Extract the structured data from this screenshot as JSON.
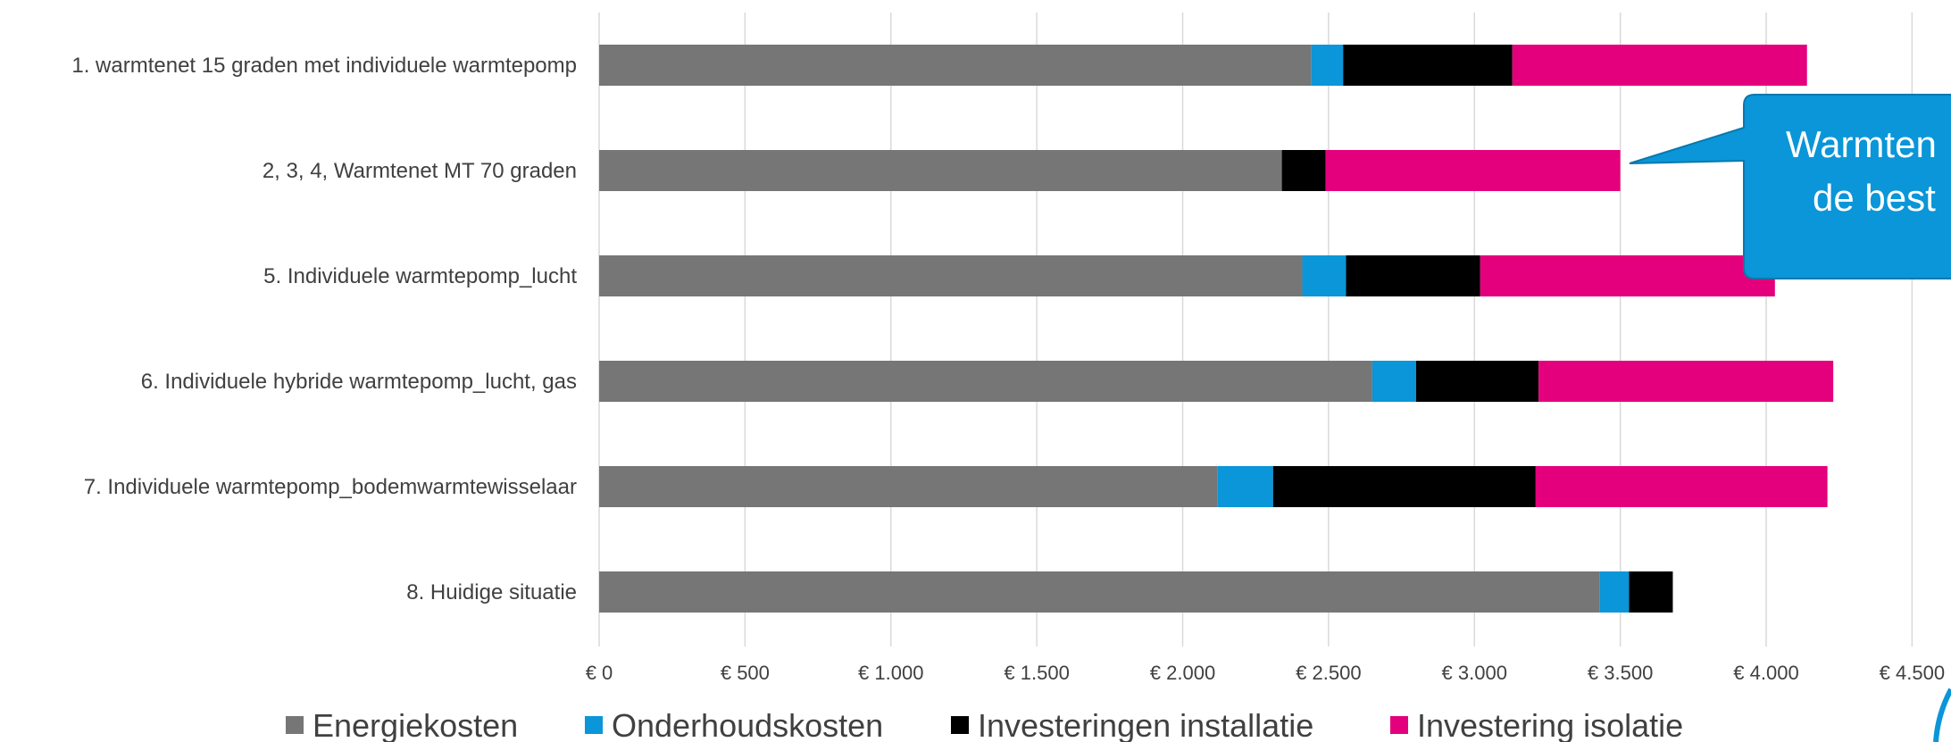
{
  "chart_data": {
    "type": "bar",
    "orientation": "horizontal",
    "stacked": true,
    "categories": [
      "1. warmtenet 15 graden met individuele warmtepomp",
      "2, 3, 4, Warmtenet MT 70 graden",
      "5. Individuele warmtepomp_lucht",
      "6. Individuele hybride warmtepomp_lucht, gas",
      "7. Individuele warmtepomp_bodemwarmtewisselaar",
      "8. Huidige situatie"
    ],
    "series": [
      {
        "name": "Energiekosten",
        "color": "#767676",
        "values": [
          2440,
          2340,
          2410,
          2650,
          2120,
          3430
        ]
      },
      {
        "name": "Onderhoudskosten",
        "color": "#0a96d8",
        "values": [
          110,
          0,
          150,
          150,
          190,
          100
        ]
      },
      {
        "name": "Investeringen installatie",
        "color": "#000000",
        "values": [
          580,
          150,
          460,
          420,
          900,
          150
        ]
      },
      {
        "name": "Investering isolatie",
        "color": "#e4007c",
        "values": [
          1010,
          1010,
          1010,
          1010,
          1000,
          0
        ]
      }
    ],
    "xlim": [
      0,
      4500
    ],
    "xticks": [
      0,
      500,
      1000,
      1500,
      2000,
      2500,
      3000,
      3500,
      4000,
      4500
    ],
    "xtick_labels": [
      "€ 0",
      "€ 500",
      "€ 1.000",
      "€ 1.500",
      "€ 2.000",
      "€ 2.500",
      "€ 3.000",
      "€ 3.500",
      "€ 4.000",
      "€ 4.500"
    ],
    "grid": true,
    "legend_position": "bottom"
  },
  "callout": {
    "lines": [
      "Warmten",
      "de best"
    ],
    "color": "#0a96d8"
  }
}
